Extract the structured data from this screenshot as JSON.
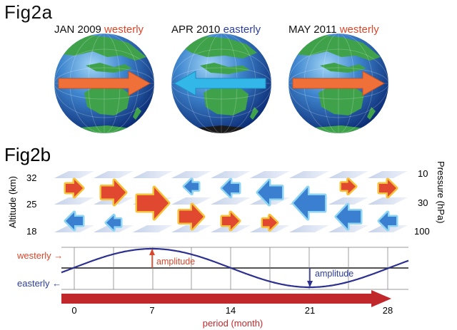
{
  "fig2a": {
    "title": "Fig2a",
    "globes": [
      {
        "date": "JAN 2009",
        "wind": "westerly",
        "direction": "right"
      },
      {
        "date": "APR 2010",
        "wind": "easterly",
        "direction": "left"
      },
      {
        "date": "MAY 2011",
        "wind": "westerly",
        "direction": "right"
      }
    ]
  },
  "fig2b": {
    "title": "Fig2b",
    "left_axis": {
      "title": "Altitude (km)",
      "ticks": [
        "32",
        "25",
        "18"
      ]
    },
    "right_axis": {
      "title": "Pressure (hPa)",
      "ticks": [
        "10",
        "30",
        "100"
      ]
    },
    "westerly_label": "westerly →",
    "easterly_label": "easterly ←",
    "amplitude_label_1": "amplitude",
    "amplitude_label_2": "amplitude",
    "x_ticks": [
      "0",
      "7",
      "14",
      "21",
      "28"
    ],
    "x_title": "period (month)"
  },
  "colors": {
    "westerly": "#d9472b",
    "easterly": "#2c3e9c",
    "curve": "#2c3090",
    "period_arrow": "#c0282b"
  }
}
